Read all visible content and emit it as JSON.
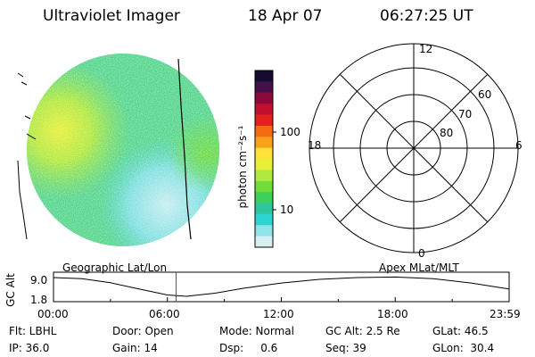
{
  "header": {
    "instrument": "Ultraviolet Imager",
    "date": "18 Apr 07",
    "time": "06:27:25 UT"
  },
  "colorbar": {
    "label": "photon cm⁻²s⁻¹",
    "ticks": [
      "100",
      "10"
    ],
    "colors": [
      "#150a30",
      "#45104a",
      "#8a0a3c",
      "#c0102e",
      "#e41f1f",
      "#f36a13",
      "#f7a21a",
      "#ffe23a",
      "#e8f03a",
      "#b2e93f",
      "#72dc3d",
      "#3fcf5c",
      "#2ec89c",
      "#2dd6d2",
      "#8fe4ea",
      "#d6f0f2"
    ]
  },
  "polar": {
    "mlt_labels": {
      "top": "12",
      "left": "18",
      "right": "6",
      "bottom": "0"
    },
    "lat_labels": [
      "60",
      "70",
      "80"
    ]
  },
  "timeline": {
    "left_label": "Geographic Lat/Lon",
    "right_label": "Apex MLat/MLT",
    "y_axis_label": "GC Alt",
    "y_ticks": [
      "9.0",
      "1.8"
    ],
    "x_ticks": [
      "00:00",
      "06:00",
      "12:00",
      "18:00",
      "23:59"
    ],
    "marker_time": "06:27:25",
    "orbit": [
      {
        "t": 0,
        "alt": 9.0
      },
      {
        "t": 1.5,
        "alt": 8.6
      },
      {
        "t": 3.0,
        "alt": 7.0
      },
      {
        "t": 4.5,
        "alt": 4.6
      },
      {
        "t": 6.0,
        "alt": 2.3
      },
      {
        "t": 7.0,
        "alt": 1.8
      },
      {
        "t": 8.5,
        "alt": 3.0
      },
      {
        "t": 10.0,
        "alt": 4.9
      },
      {
        "t": 12.0,
        "alt": 6.9
      },
      {
        "t": 14.0,
        "alt": 8.3
      },
      {
        "t": 16.0,
        "alt": 9.0
      },
      {
        "t": 18.0,
        "alt": 9.2
      },
      {
        "t": 20.0,
        "alt": 8.6
      },
      {
        "t": 22.0,
        "alt": 6.9
      },
      {
        "t": 23.98,
        "alt": 4.6
      }
    ]
  },
  "info": {
    "filter": "Flt: LBHL",
    "door": "Door: Open",
    "mode": "Mode: Normal",
    "gc_alt": "GC Alt: 2.5 Re",
    "glat": "GLat:  46.5",
    "ip": "IP: 36.0",
    "gain": "Gain: 14",
    "dsp": "Dsp:     0.6",
    "seq": "Seq: 39",
    "glon": "GLon:  30.4"
  }
}
